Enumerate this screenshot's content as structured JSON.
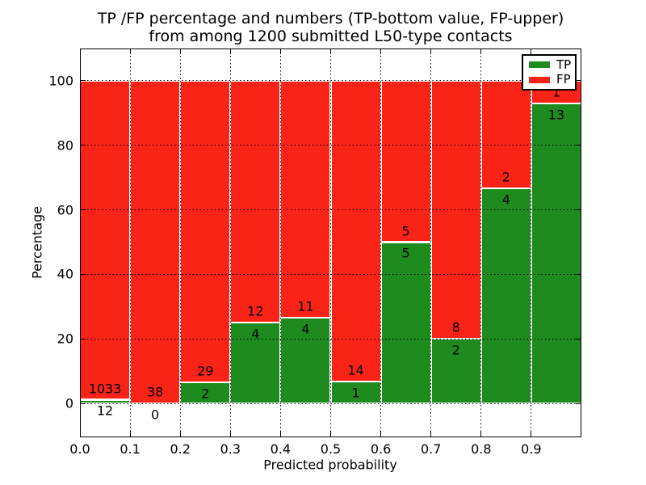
{
  "chart_data": {
    "type": "bar",
    "stacked": true,
    "normalized_to_percent": 100,
    "title": "TP /FP percentage and numbers (TP-bottom value, FP-upper)\nfrom among 1200 submitted L50-type contacts",
    "title_lines": {
      "line1": "TP /FP percentage and numbers (TP-bottom value, FP-upper)",
      "line2": "from among 1200 submitted L50-type contacts"
    },
    "xlabel": "Predicted probability",
    "ylabel": "Percentage",
    "total_contacts": 1200,
    "x_bin_edges": [
      0.0,
      0.1,
      0.2,
      0.3,
      0.4,
      0.5,
      0.6,
      0.7,
      0.8,
      0.9,
      1.0
    ],
    "x_ticks": [
      0.0,
      0.1,
      0.2,
      0.3,
      0.4,
      0.5,
      0.6,
      0.7,
      0.8,
      0.9
    ],
    "x_tick_labels": [
      "0.0",
      "0.1",
      "0.2",
      "0.3",
      "0.4",
      "0.5",
      "0.6",
      "0.7",
      "0.8",
      "0.9"
    ],
    "y_ticks": [
      0,
      20,
      40,
      60,
      80,
      100
    ],
    "y_tick_labels": [
      "0",
      "20",
      "40",
      "60",
      "80",
      "100"
    ],
    "ylim": [
      -10.5,
      110
    ],
    "grid": {
      "style": "dotted",
      "color": "#000000",
      "x": true,
      "y": true,
      "drawn_above_bars": true
    },
    "bar_edge_color": "#ffffff",
    "legend": {
      "position": "upper right",
      "entries": [
        {
          "label": "TP",
          "color": "#1e8b1e"
        },
        {
          "label": "FP",
          "color": "#fa2318"
        }
      ]
    },
    "series": [
      {
        "name": "TP",
        "color": "#1e8b1e",
        "counts": [
          12,
          0,
          2,
          4,
          4,
          1,
          5,
          2,
          4,
          13
        ]
      },
      {
        "name": "FP",
        "color": "#fa2318",
        "counts": [
          1033,
          38,
          29,
          12,
          11,
          14,
          5,
          8,
          2,
          1
        ]
      }
    ],
    "tp_percent_of_bin": [
      1.15,
      0.0,
      6.45,
      25.0,
      26.67,
      6.67,
      50.0,
      20.0,
      66.67,
      92.86
    ]
  }
}
